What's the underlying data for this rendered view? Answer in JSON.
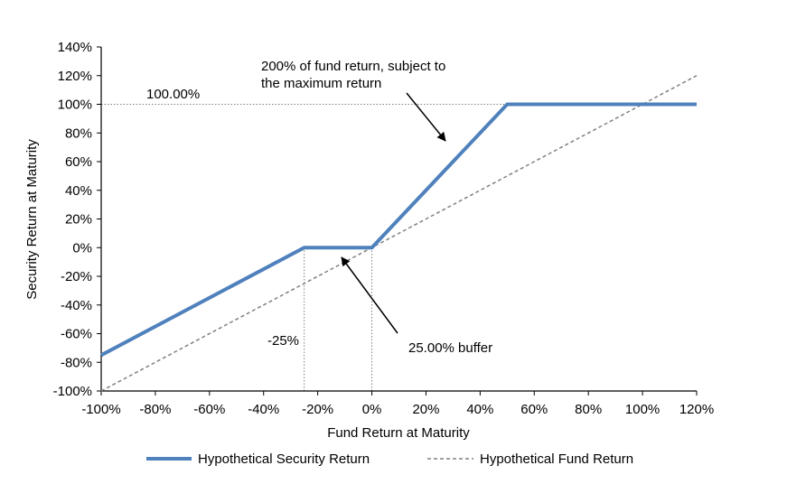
{
  "chart_data": {
    "type": "line",
    "xlabel": "Fund Return at Maturity",
    "ylabel": "Security Return at Maturity",
    "xlim": [
      -100,
      120
    ],
    "ylim": [
      -100,
      140
    ],
    "x_ticks": [
      -100,
      -80,
      -60,
      -40,
      -20,
      0,
      20,
      40,
      60,
      80,
      100,
      120
    ],
    "y_ticks": [
      -100,
      -80,
      -60,
      -40,
      -20,
      0,
      20,
      40,
      60,
      80,
      100,
      120,
      140
    ],
    "tick_suffix": "%",
    "grid": false,
    "legend_position": "bottom",
    "series": [
      {
        "name": "Hypothetical Security Return",
        "color": "#4f81bd",
        "style": "solid",
        "x": [
          -100,
          -25,
          0,
          50,
          120
        ],
        "y": [
          -75,
          0,
          0,
          100,
          100
        ]
      },
      {
        "name": "Hypothetical Fund Return",
        "color": "#808080",
        "style": "dashed",
        "x": [
          -100,
          120
        ],
        "y": [
          -100,
          120
        ]
      }
    ],
    "reference_lines": [
      {
        "orientation": "horizontal",
        "value": 100,
        "x_from": -100,
        "x_to": 50
      },
      {
        "orientation": "vertical",
        "value": -25,
        "y_from": -100,
        "y_to": 0
      },
      {
        "orientation": "vertical",
        "value": 0,
        "y_from": -100,
        "y_to": 0
      }
    ],
    "annotations": {
      "cap_label": "100.00%",
      "buffer_label": "-25%",
      "slope_note_line1": "200% of fund return, subject to",
      "slope_note_line2": "the maximum  return",
      "buffer_note": "25.00% buffer"
    }
  }
}
